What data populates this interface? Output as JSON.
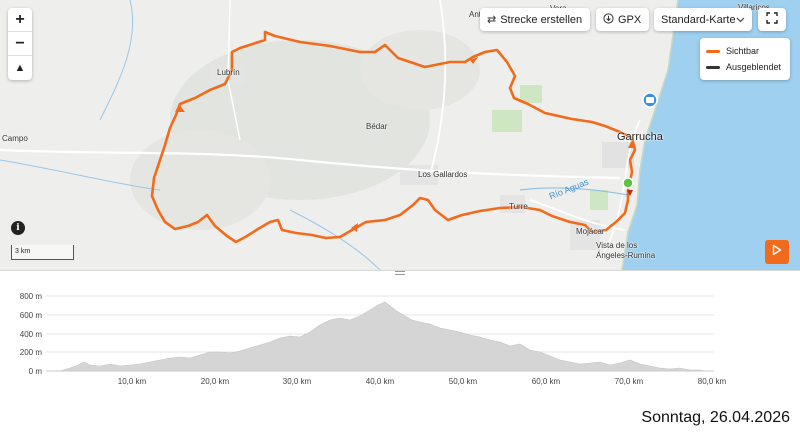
{
  "toolbar": {
    "route_label": "Strecke erstellen",
    "gpx_label": "GPX",
    "map_style_label": "Standard-Karte"
  },
  "zoom": {
    "plus": "+",
    "minus": "−",
    "north": "▲"
  },
  "legend": {
    "visible_label": "Sichtbar",
    "hidden_label": "Ausgeblendet",
    "visible_color": "#f26a1b",
    "hidden_color": "#333333"
  },
  "map": {
    "places": {
      "vera": "Vera",
      "ant": "Ant",
      "villaricos": "Villaricos",
      "lubrin": "Lubrín",
      "campo": "Campo",
      "bedar": "Bédar",
      "los_gallardos": "Los Gallardos",
      "garrucha": "Garrucha",
      "turre": "Turre",
      "mojacar": "Mojácar",
      "vista_line1": "Vista de los",
      "vista_line2": "Ángeles-Rumina",
      "rio_aguas": "Río Aguas"
    },
    "scale_label": "3 km",
    "info_icon": "i",
    "route_color": "#f26a1b",
    "sea_color": "#9fd0ef"
  },
  "profile": {
    "y_ticks": [
      "800 m",
      "600 m",
      "400 m",
      "200 m",
      "0 m"
    ],
    "x_ticks": [
      "10,0 km",
      "20,0 km",
      "30,0 km",
      "40,0 km",
      "50,0 km",
      "60,0 km",
      "70,0 km",
      "80,0 km"
    ],
    "fill_color": "#d5d5d5"
  },
  "date_text": "Sonntag, 26.04.2026"
}
